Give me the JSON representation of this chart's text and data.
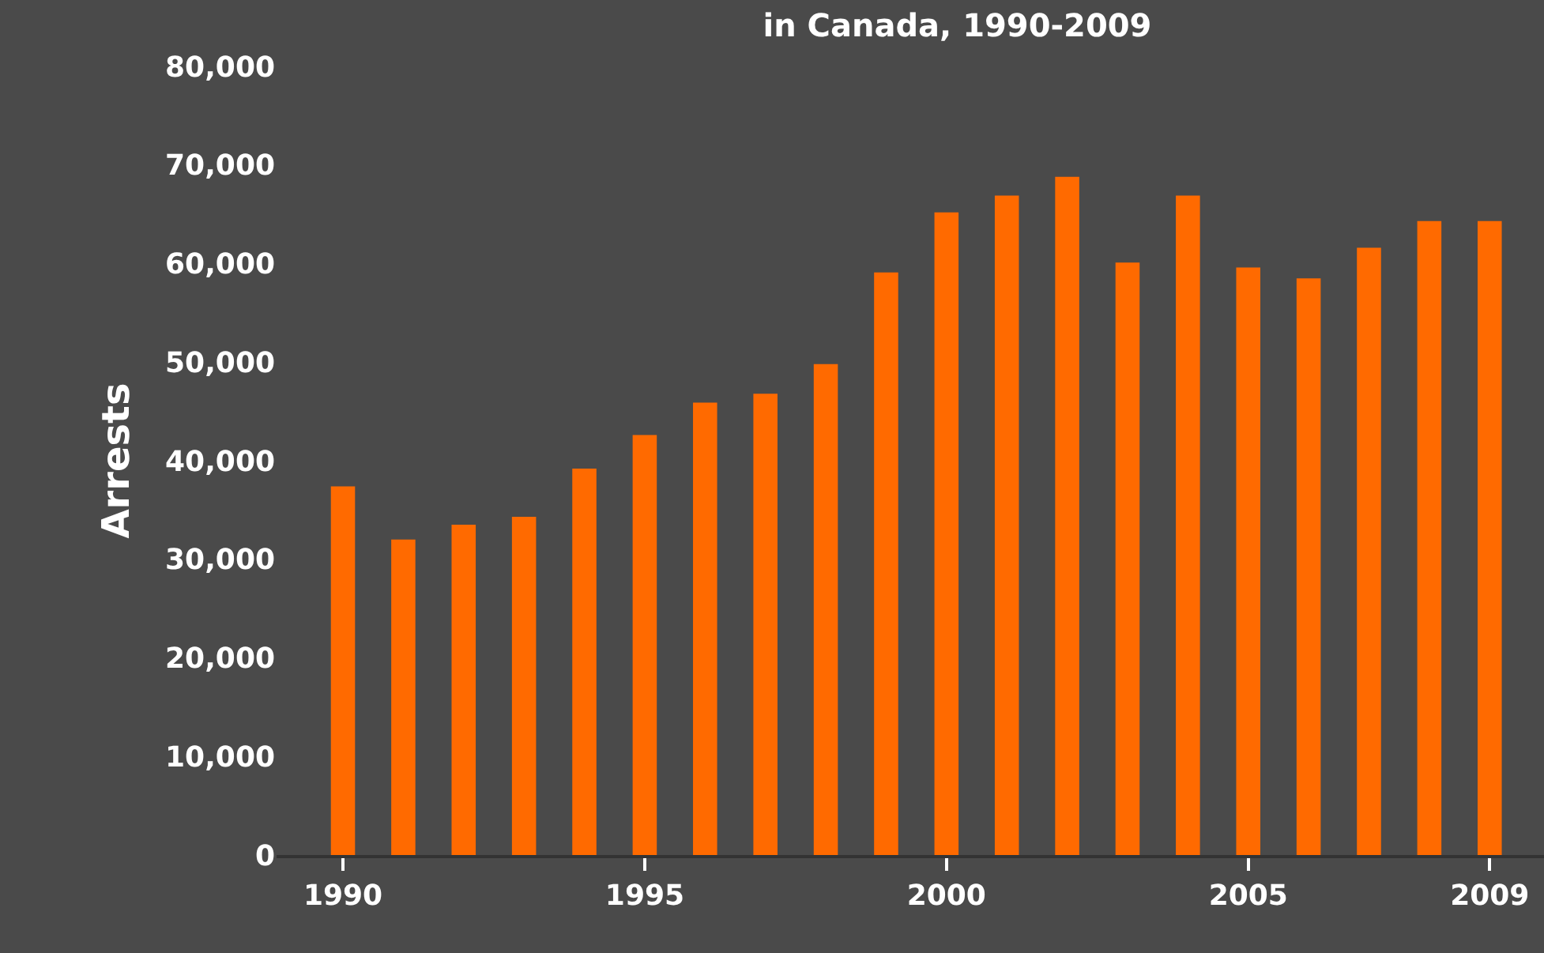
{
  "chart_data": {
    "type": "bar",
    "title": "in Canada, 1990-2009",
    "ylabel": "Arrests",
    "x": [
      1990,
      1991,
      1992,
      1993,
      1994,
      1995,
      1996,
      1997,
      1998,
      1999,
      2000,
      2001,
      2002,
      2003,
      2004,
      2005,
      2006,
      2007,
      2008,
      2009
    ],
    "values": [
      37400,
      32000,
      33500,
      34300,
      39200,
      42600,
      45900,
      46800,
      49800,
      59100,
      65200,
      66900,
      68800,
      60100,
      66900,
      59600,
      58500,
      61600,
      64300,
      64300
    ],
    "color": "#ff6a00",
    "xlim": [
      1988.9,
      2009.9
    ],
    "xticks": [
      1990,
      1995,
      2000,
      2005,
      2009
    ],
    "ylim": [
      0,
      80000
    ],
    "yticks": [
      {
        "value": 0,
        "label": "0"
      },
      {
        "value": 10000,
        "label": "10,000"
      },
      {
        "value": 20000,
        "label": "20,000"
      },
      {
        "value": 30000,
        "label": "30,000"
      },
      {
        "value": 40000,
        "label": "40,000"
      },
      {
        "value": 50000,
        "label": "50,000"
      },
      {
        "value": 60000,
        "label": "60,000"
      },
      {
        "value": 70000,
        "label": "70,000"
      },
      {
        "value": 80000,
        "label": "80,000"
      }
    ],
    "grid": false
  }
}
